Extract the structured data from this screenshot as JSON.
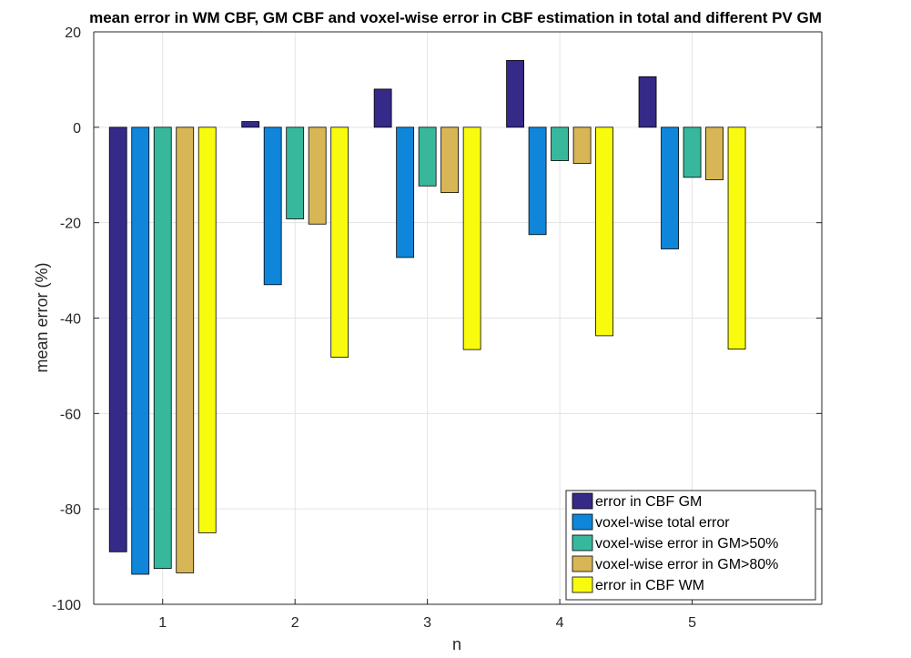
{
  "chart_data": {
    "type": "bar",
    "title": "mean error in WM CBF, GM CBF and voxel-wise error in CBF estimation in total and different PV GM",
    "xlabel": "n",
    "ylabel": "mean error (%)",
    "categories": [
      "1",
      "2",
      "3",
      "4",
      "5"
    ],
    "ylim": [
      -100,
      20
    ],
    "yticks": [
      -100,
      -80,
      -60,
      -40,
      -20,
      0,
      20
    ],
    "grid": true,
    "legend_position": "bottom-right",
    "series": [
      {
        "name": "error in CBF GM",
        "color": "#352a87",
        "values": [
          -89,
          1.2,
          8,
          14,
          10.6
        ]
      },
      {
        "name": "voxel-wise total error",
        "color": "#0f86d9",
        "values": [
          -93.7,
          -33,
          -27.3,
          -22.5,
          -25.5
        ]
      },
      {
        "name": "voxel-wise error in GM>50%",
        "color": "#37b89d",
        "values": [
          -92.5,
          -19.2,
          -12.3,
          -7,
          -10.5
        ]
      },
      {
        "name": "voxel-wise error in GM>80%",
        "color": "#d8b656",
        "values": [
          -93.4,
          -20.3,
          -13.7,
          -7.6,
          -11
        ]
      },
      {
        "name": "error in CBF WM",
        "color": "#f9fb0e",
        "values": [
          -85,
          -48.2,
          -46.6,
          -43.7,
          -46.5
        ]
      }
    ]
  }
}
